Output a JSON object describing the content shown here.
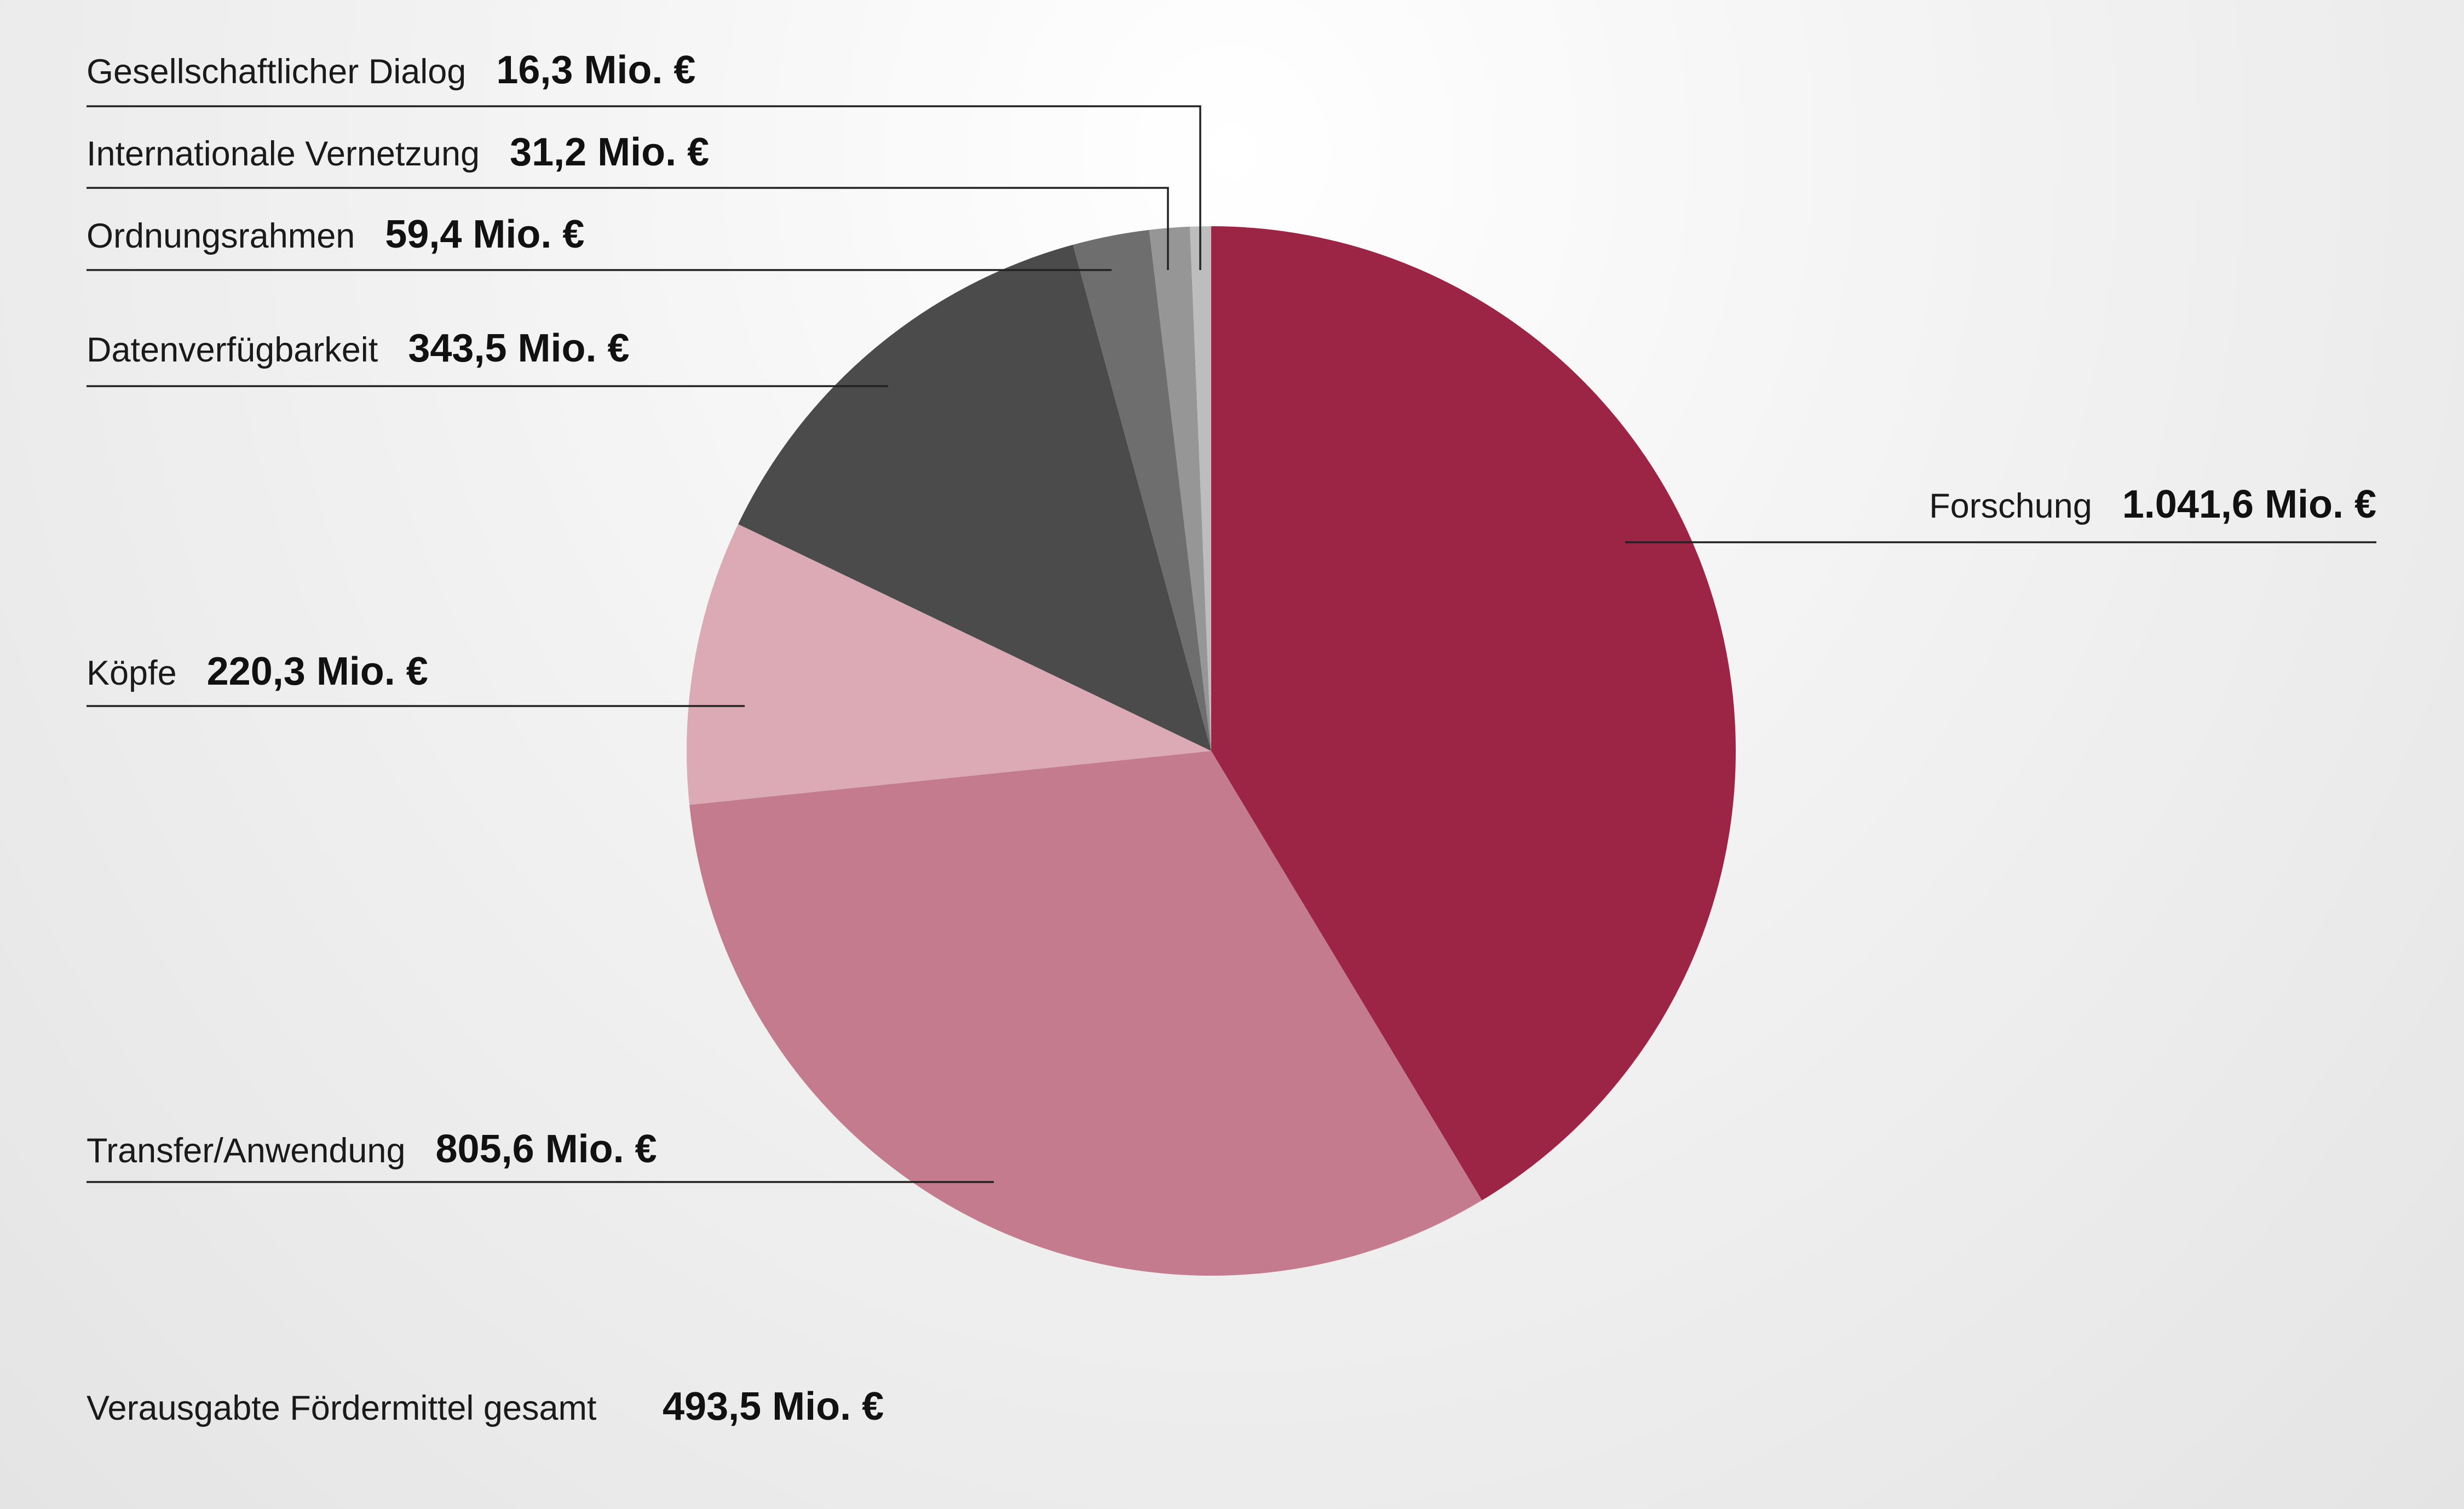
{
  "chart_data": {
    "type": "pie",
    "start_angle_deg": 0,
    "direction": "clockwise",
    "slices": [
      {
        "label": "Forschung",
        "value": 1041.6,
        "value_text": "1.041,6 Mio. €",
        "color": "#9c2545"
      },
      {
        "label": "Transfer/Anwendung",
        "value": 805.6,
        "value_text": "805,6 Mio. €",
        "color": "#c47b8e"
      },
      {
        "label": "Köpfe",
        "value": 220.3,
        "value_text": "220,3 Mio. €",
        "color": "#dbaab5"
      },
      {
        "label": "Datenverfügbarkeit",
        "value": 343.5,
        "value_text": "343,5 Mio. €",
        "color": "#4b4b4b"
      },
      {
        "label": "Ordnungsrahmen",
        "value": 59.4,
        "value_text": "59,4 Mio. €",
        "color": "#6e6e6e"
      },
      {
        "label": "Internationale Vernetzung",
        "value": 31.2,
        "value_text": "31,2 Mio. €",
        "color": "#969696"
      },
      {
        "label": "Gesellschaftlicher Dialog",
        "value": 16.3,
        "value_text": "16,3 Mio. €",
        "color": "#bdbdbd"
      }
    ],
    "total": {
      "label": "Verausgabte Fördermittel gesamt",
      "value_text": "493,5 Mio. €"
    }
  }
}
